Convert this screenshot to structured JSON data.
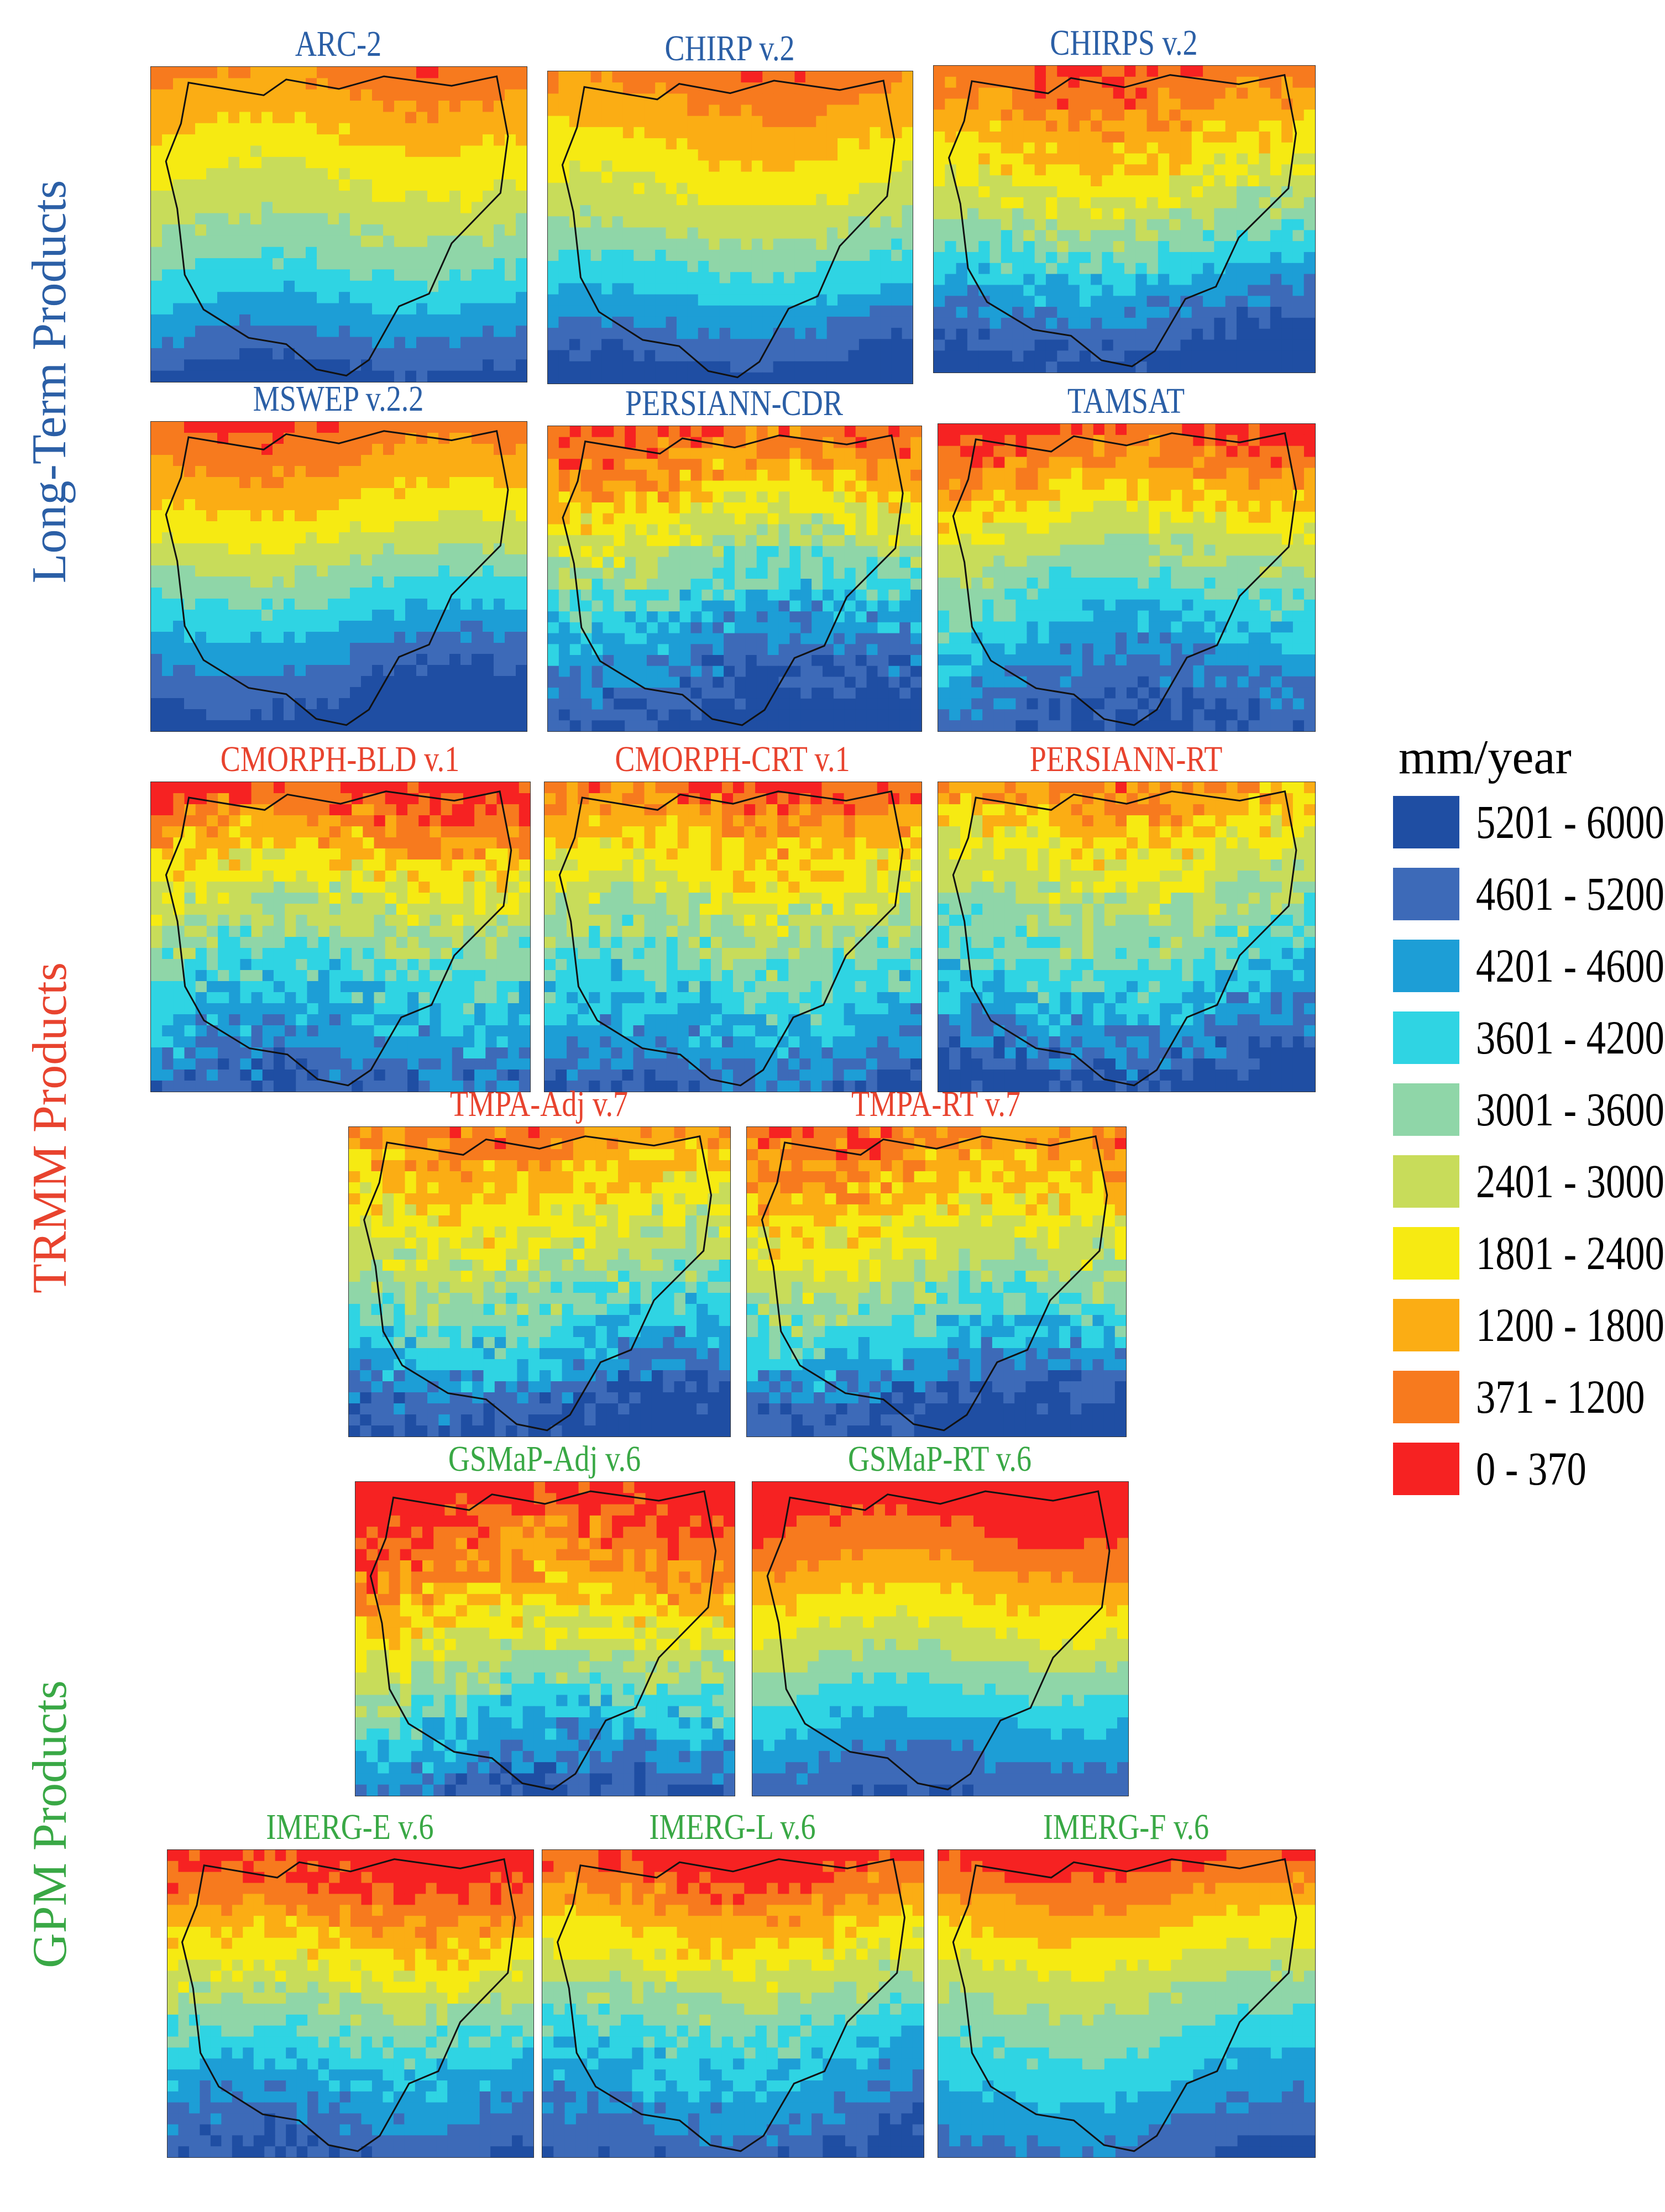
{
  "figure": {
    "groups": [
      {
        "id": "long-term",
        "label": "Long-Term Products",
        "color": "#2b5fa6"
      },
      {
        "id": "trmm",
        "label": "TRMM Products",
        "color": "#e8432e"
      },
      {
        "id": "gpm",
        "label": "GPM Products",
        "color": "#39a845"
      }
    ],
    "panels": [
      {
        "title": "ARC-2",
        "group": "long-term",
        "wetness": 0.55,
        "pattern": "smooth"
      },
      {
        "title": "CHIRP v.2",
        "group": "long-term",
        "wetness": 0.6,
        "pattern": "smooth"
      },
      {
        "title": "CHIRPS v.2",
        "group": "long-term",
        "wetness": 0.6,
        "pattern": "speckled"
      },
      {
        "title": "MSWEP v.2.2",
        "group": "long-term",
        "wetness": 0.7,
        "pattern": "smooth"
      },
      {
        "title": "PERSIANN-CDR",
        "group": "long-term",
        "wetness": 0.75,
        "pattern": "blocky"
      },
      {
        "title": "TAMSAT",
        "group": "long-term",
        "wetness": 0.55,
        "pattern": "speckled"
      },
      {
        "title": "CMORPH-BLD v.1",
        "group": "trmm",
        "wetness": 0.45,
        "pattern": "blocky"
      },
      {
        "title": "CMORPH-CRT v.1",
        "group": "trmm",
        "wetness": 0.5,
        "pattern": "blocky"
      },
      {
        "title": "PERSIANN-RT",
        "group": "trmm",
        "wetness": 0.8,
        "pattern": "blocky"
      },
      {
        "title": "TMPA-Adj v.7",
        "group": "trmm",
        "wetness": 0.7,
        "pattern": "blocky"
      },
      {
        "title": "TMPA-RT v.7",
        "group": "trmm",
        "wetness": 0.65,
        "pattern": "blocky"
      },
      {
        "title": "GSMaP-Adj v.6",
        "group": "gpm",
        "wetness": 0.1,
        "pattern": "blocky"
      },
      {
        "title": "GSMaP-RT v.6",
        "group": "gpm",
        "wetness": 0.15,
        "pattern": "smooth"
      },
      {
        "title": "IMERG-E v.6",
        "group": "gpm",
        "wetness": 0.35,
        "pattern": "speckled"
      },
      {
        "title": "IMERG-L v.6",
        "group": "gpm",
        "wetness": 0.45,
        "pattern": "speckled"
      },
      {
        "title": "IMERG-F v.6",
        "group": "gpm",
        "wetness": 0.4,
        "pattern": "smooth"
      }
    ]
  },
  "legend": {
    "unit": "mm/year",
    "classes": [
      {
        "label": "5201 - 6000",
        "color": "#1f4ea3"
      },
      {
        "label": "4601 - 5200",
        "color": "#3d6ab8"
      },
      {
        "label": "4201 - 4600",
        "color": "#1d9ed6"
      },
      {
        "label": "3601 - 4200",
        "color": "#2fd4e3"
      },
      {
        "label": "3001 - 3600",
        "color": "#8fd6a8"
      },
      {
        "label": "2401 - 3000",
        "color": "#c8dc5a"
      },
      {
        "label": "1801 - 2400",
        "color": "#f6ea12"
      },
      {
        "label": "1200 - 1800",
        "color": "#fbad14"
      },
      {
        "label": "371 - 1200",
        "color": "#f77a1e"
      },
      {
        "label": "0 - 370",
        "color": "#f62222"
      }
    ]
  }
}
